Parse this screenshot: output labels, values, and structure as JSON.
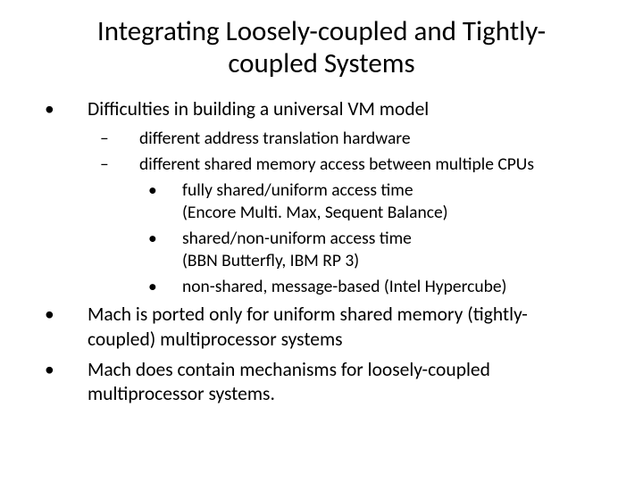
{
  "title_line1": "Integrating Loosely-coupled and Tightly-",
  "title_line2": "coupled Systems",
  "bullets": {
    "b1": "Difficulties in building a universal VM model",
    "b1a": "different address translation hardware",
    "b1b": "different shared memory access between multiple CPUs",
    "b1b1_l1": "fully shared/uniform access time",
    "b1b1_l2": "(Encore Multi. Max, Sequent Balance)",
    "b1b2_l1": "shared/non-uniform access time",
    "b1b2_l2": "(BBN Butterfly, IBM RP 3)",
    "b1b3": "non-shared, message-based (Intel Hypercube)",
    "b2_l1": "Mach is ported only for uniform shared memory (tightly-",
    "b2_l2": "coupled) multiprocessor systems",
    "b3_l1": "Mach does contain mechanisms for loosely-coupled",
    "b3_l2": "multiprocessor systems."
  },
  "markers": {
    "level1": "•",
    "level2": "–",
    "level3": "•"
  },
  "style": {
    "background": "#ffffff",
    "text_color": "#000000",
    "title_fontsize": 31,
    "body_fontsize": 21.5,
    "sub_fontsize": 19.5,
    "font_family": "Calibri"
  }
}
